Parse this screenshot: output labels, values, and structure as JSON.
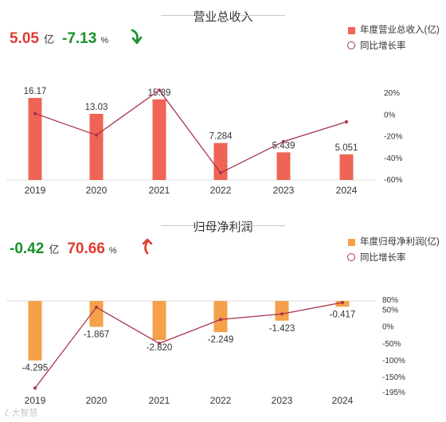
{
  "colors": {
    "revenue_bar": "#ef6454",
    "profit_bar": "#f5a04a",
    "growth_line": "#a8324a",
    "positive": "#e03c31",
    "negative": "#17912a"
  },
  "panels": [
    {
      "title": "营业总收入",
      "kpi": {
        "value": "5.05",
        "unit": "亿",
        "growth": "-7.13",
        "growth_unit": "%",
        "arrow": "down"
      },
      "legend": {
        "bar": "年度营业总收入(亿)",
        "line": "同比增长率"
      }
    },
    {
      "title": "归母净利润",
      "kpi": {
        "value": "-0.42",
        "unit": "亿",
        "growth": "70.66",
        "growth_unit": "%",
        "arrow": "up"
      },
      "legend": {
        "bar": "年度归母净利润(亿)",
        "line": "同比增长率"
      }
    }
  ],
  "chart_data": [
    {
      "type": "bar",
      "title": "营业总收入",
      "categories": [
        "2019",
        "2020",
        "2021",
        "2022",
        "2023",
        "2024"
      ],
      "series": [
        {
          "name": "年度营业总收入(亿)",
          "type": "bar",
          "axis": "left",
          "values": [
            16.17,
            13.03,
            15.89,
            7.284,
            5.439,
            5.051
          ],
          "labels": [
            "16.17",
            "13.03",
            "15.89",
            "7.284",
            "5.439",
            "5.051"
          ]
        },
        {
          "name": "同比增长率",
          "type": "line",
          "axis": "right",
          "values": [
            0.5,
            -19.4,
            22.0,
            -54.2,
            -25.3,
            -7.13
          ]
        }
      ],
      "y2_ticks": [
        "20%",
        "0%",
        "-20%",
        "-40%",
        "-60%"
      ],
      "y2lim": [
        -60,
        20
      ],
      "legend_position": "top-right"
    },
    {
      "type": "bar",
      "title": "归母净利润",
      "categories": [
        "2019",
        "2020",
        "2021",
        "2022",
        "2023",
        "2024"
      ],
      "series": [
        {
          "name": "年度归母净利润(亿)",
          "type": "bar",
          "axis": "left",
          "values": [
            -4.295,
            -1.867,
            -2.82,
            -2.249,
            -1.423,
            -0.417
          ],
          "labels": [
            "-4.295",
            "-1.867",
            "-2.820",
            "-2.249",
            "-1.423",
            "-0.417"
          ]
        },
        {
          "name": "同比增长率",
          "type": "line",
          "axis": "right",
          "values": [
            -184,
            56.5,
            -51,
            20.2,
            36.7,
            70.66
          ]
        }
      ],
      "y2_ticks": [
        "80%",
        "50%",
        "0%",
        "-50%",
        "-100%",
        "-150%",
        "-195%"
      ],
      "y2lim": [
        -195,
        80
      ],
      "legend_position": "top-right"
    }
  ],
  "watermark": "大智慧"
}
